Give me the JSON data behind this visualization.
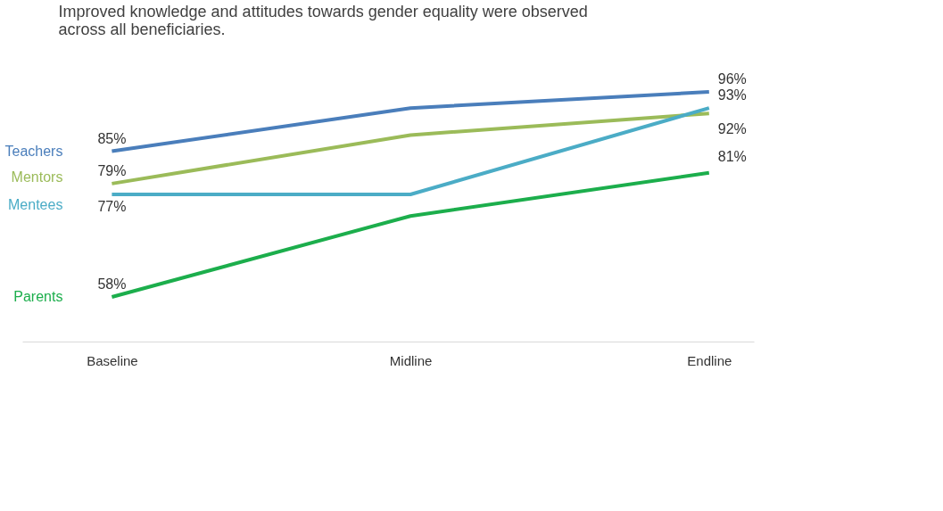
{
  "chart_data": {
    "type": "line",
    "title": "Improved knowledge and attitudes towards gender equality were observed across all beneficiaries.",
    "categories": [
      "Baseline",
      "Midline",
      "Endline"
    ],
    "series": [
      {
        "name": "Teachers",
        "color": "#4a7ebb",
        "values": [
          85,
          93,
          96
        ],
        "value_labels": [
          "85%",
          null,
          "96%"
        ]
      },
      {
        "name": "Mentors",
        "color": "#9bbb59",
        "values": [
          79,
          88,
          92
        ],
        "value_labels": [
          "79%",
          null,
          "92%"
        ]
      },
      {
        "name": "Mentees",
        "color": "#4bacc6",
        "values": [
          77,
          77,
          93
        ],
        "value_labels": [
          "77%",
          null,
          "93%"
        ]
      },
      {
        "name": "Parents",
        "color": "#1cae4c",
        "values": [
          58,
          73,
          81
        ],
        "value_labels": [
          "58%",
          null,
          "81%"
        ]
      }
    ],
    "tick_labels": "x",
    "grid": false,
    "legend": false,
    "marker": "none",
    "line_style": "solid"
  }
}
